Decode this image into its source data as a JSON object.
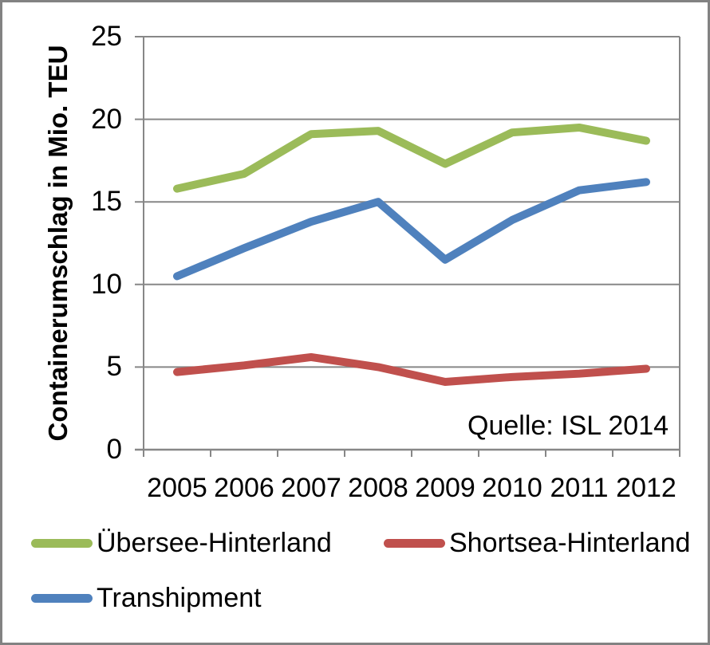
{
  "chart_data": {
    "type": "line",
    "title": "",
    "xlabel": "",
    "ylabel": "Containerumschlag in Mio. TEU",
    "ylim": [
      0,
      25
    ],
    "yticks": [
      0,
      5,
      10,
      15,
      20,
      25
    ],
    "grid": "horizontal",
    "legend_position": "bottom",
    "annotation": "Quelle: ISL 2014",
    "categories": [
      "2005",
      "2006",
      "2007",
      "2008",
      "2009",
      "2010",
      "2011",
      "2012"
    ],
    "series": [
      {
        "name": "Übersee-Hinterland",
        "color": "#9BBB59",
        "values": [
          15.8,
          16.7,
          19.1,
          19.3,
          17.3,
          19.2,
          19.5,
          18.7
        ]
      },
      {
        "name": "Shortsea-Hinterland",
        "color": "#C0504D",
        "values": [
          4.7,
          5.1,
          5.6,
          5.0,
          4.1,
          4.4,
          4.6,
          4.9
        ]
      },
      {
        "name": "Transhipment",
        "color": "#4F81BD",
        "values": [
          10.5,
          12.2,
          13.8,
          15.0,
          11.5,
          13.9,
          15.7,
          16.2
        ]
      }
    ],
    "axis_color": "#878787",
    "text_color": "#000000"
  },
  "legend_rows": [
    [
      0,
      1
    ],
    [
      2
    ]
  ]
}
